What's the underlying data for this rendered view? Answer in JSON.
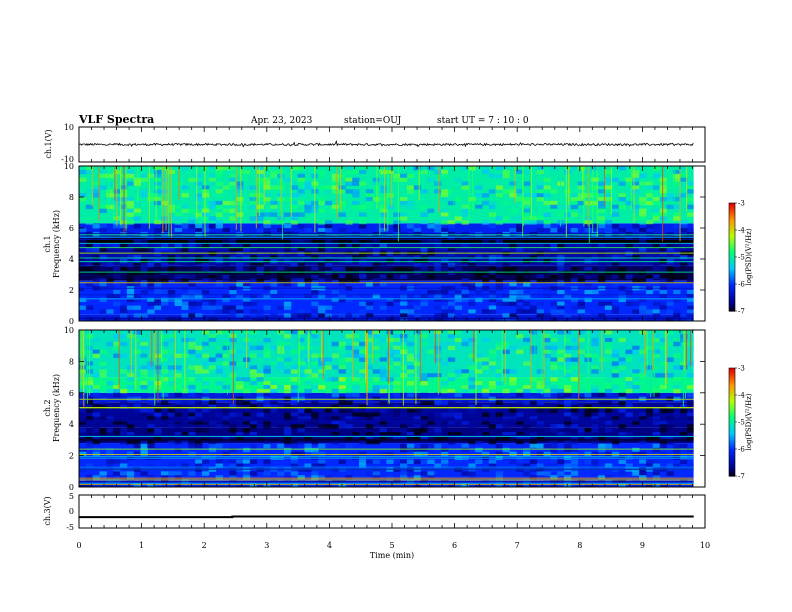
{
  "header": {
    "title": "VLF Spectra",
    "date": "Apr. 23, 2023",
    "station": "station=OUJ",
    "start_ut": "start  UT =   7 : 10 : 0"
  },
  "chart_data": [
    {
      "type": "line",
      "name": "ch1-waveform",
      "ylabel": "ch.1(V)",
      "ylim": [
        -10,
        10
      ],
      "yticks": [
        "10",
        "-10"
      ],
      "xlim": [
        0,
        10
      ],
      "baseline_v": 0,
      "amplitude_v": 0.6
    },
    {
      "type": "heatmap",
      "name": "ch1-spectrogram",
      "ylabel_lines": [
        "ch.1",
        "Frequency (kHz)"
      ],
      "ylim": [
        0,
        10
      ],
      "yticks": [
        "0",
        "2",
        "4",
        "6",
        "8",
        "10"
      ],
      "x_end_min": 9.82,
      "bands_khz": [
        {
          "from": 0,
          "to": 0.4,
          "level": -6.2
        },
        {
          "from": 0.4,
          "to": 2.6,
          "level": -6.0
        },
        {
          "from": 2.6,
          "to": 3.6,
          "level": -6.8
        },
        {
          "from": 3.6,
          "to": 5.0,
          "level": -6.5
        },
        {
          "from": 5.0,
          "to": 5.5,
          "level": -7.0
        },
        {
          "from": 5.5,
          "to": 6.3,
          "level": -6.1
        },
        {
          "from": 6.3,
          "to": 10,
          "level": -5.0
        }
      ],
      "colorbar": {
        "label": "log(PSD)(V²/Hz)",
        "min": -7,
        "max": -3,
        "ticks": [
          "-3",
          "-4",
          "-5",
          "-6",
          "-7"
        ]
      }
    },
    {
      "type": "heatmap",
      "name": "ch2-spectrogram",
      "ylabel_lines": [
        "ch.2",
        "Frequency (kHz)"
      ],
      "ylim": [
        0,
        10
      ],
      "yticks": [
        "0",
        "2",
        "4",
        "6",
        "8",
        "10"
      ],
      "x_end_min": 9.82,
      "bands_khz": [
        {
          "from": 0,
          "to": 0.4,
          "level": -6.1
        },
        {
          "from": 0.4,
          "to": 2.8,
          "level": -6.0
        },
        {
          "from": 2.8,
          "to": 3.8,
          "level": -6.7
        },
        {
          "from": 3.8,
          "to": 5.4,
          "level": -6.6
        },
        {
          "from": 5.4,
          "to": 6.0,
          "level": -6.2
        },
        {
          "from": 6.0,
          "to": 7.0,
          "level": -4.9
        },
        {
          "from": 7.0,
          "to": 10,
          "level": -5.1
        }
      ],
      "colorbar": {
        "label": "log(PSD)(V²/Hz)",
        "min": -7,
        "max": -3,
        "ticks": [
          "-3",
          "-4",
          "-5",
          "-6",
          "-7"
        ]
      }
    },
    {
      "type": "line",
      "name": "ch3-voltage",
      "ylabel": "ch.3(V)",
      "ylim": [
        -5,
        5
      ],
      "yticks": [
        "5",
        "0",
        "-5"
      ],
      "xlim": [
        0,
        10
      ],
      "x": [
        0,
        2.45,
        2.45,
        9.82
      ],
      "y": [
        -1.7,
        -1.7,
        -1.5,
        -1.5
      ]
    }
  ],
  "xaxis": {
    "label": "Time (min)",
    "ticks": [
      "0",
      "1",
      "2",
      "3",
      "4",
      "5",
      "6",
      "7",
      "8",
      "9",
      "10"
    ]
  }
}
